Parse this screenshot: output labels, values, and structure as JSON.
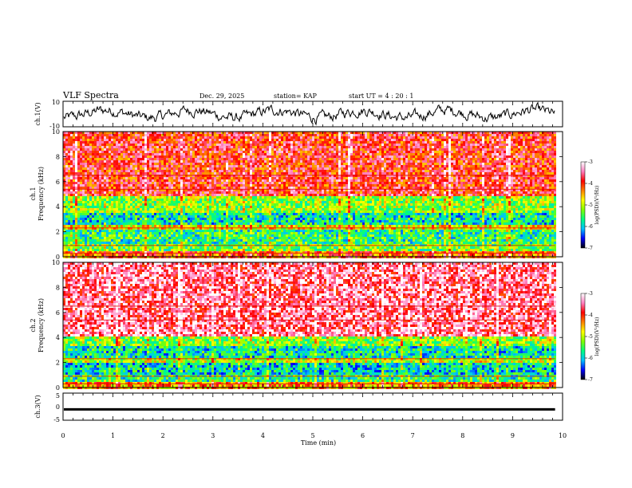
{
  "header": {
    "title": "VLF Spectra",
    "date": "Dec. 29, 2025",
    "station": "station= KAP",
    "start": "start  UT =   4 : 20 : 1"
  },
  "colors": {
    "scale": [
      "#000000",
      "#0000ff",
      "#00c0ff",
      "#00ff80",
      "#80ff00",
      "#ffff00",
      "#ff8000",
      "#ff0000",
      "#ff80c0",
      "#ffffff"
    ],
    "trace": "#000000",
    "frame": "#000000"
  },
  "chart_data": [
    {
      "type": "line",
      "panel": "ch1-waveform",
      "ylabel": "ch.1(V)",
      "ylim": [
        -10,
        10
      ],
      "ytick_labels": [
        "10",
        "-10"
      ],
      "x_range_min": [
        0,
        9.85
      ],
      "description_series": "noise-like waveform fluctuating roughly between -7 and +7 V"
    },
    {
      "type": "heatmap",
      "panel": "ch1-spectrogram",
      "ylabel": "ch.1\nFrequency (kHz)",
      "ylabel_top": "ch.1",
      "ylabel_bottom": "Frequency (kHz)",
      "ylim": [
        0,
        10
      ],
      "ytick_labels": [
        "0",
        "2",
        "4",
        "6",
        "8",
        "10"
      ],
      "colorbar": {
        "label": "log(PSD)(V²/Hz)",
        "range": [
          -7,
          -3
        ],
        "tick_labels": [
          "-3",
          "-4",
          "-5",
          "-6",
          "-7"
        ]
      },
      "bands_khz": [
        {
          "from": 0,
          "to": 0.6,
          "level": -4.2
        },
        {
          "from": 0.6,
          "to": 1.2,
          "level": -5.3
        },
        {
          "from": 1.2,
          "to": 2.2,
          "level": -5.6
        },
        {
          "from": 2.2,
          "to": 2.6,
          "level": -4.8
        },
        {
          "from": 2.6,
          "to": 3.6,
          "level": -5.8
        },
        {
          "from": 3.6,
          "to": 5.0,
          "level": -5.2
        },
        {
          "from": 5.0,
          "to": 10.0,
          "level": -3.9
        }
      ]
    },
    {
      "type": "heatmap",
      "panel": "ch2-spectrogram",
      "ylabel_top": "ch.2",
      "ylabel_bottom": "Frequency (kHz)",
      "ylim": [
        0,
        10
      ],
      "ytick_labels": [
        "0",
        "2",
        "4",
        "6",
        "8",
        "10"
      ],
      "colorbar": {
        "label": "log(PSD)(V²/Hz)",
        "range": [
          -7,
          -3
        ],
        "tick_labels": [
          "-3",
          "-4",
          "-5",
          "-6",
          "-7"
        ]
      },
      "bands_khz": [
        {
          "from": 0,
          "to": 0.6,
          "level": -4.4
        },
        {
          "from": 0.6,
          "to": 1.2,
          "level": -5.6
        },
        {
          "from": 1.2,
          "to": 2.0,
          "level": -5.9
        },
        {
          "from": 2.0,
          "to": 2.5,
          "level": -5.0
        },
        {
          "from": 2.5,
          "to": 3.4,
          "level": -5.8
        },
        {
          "from": 3.4,
          "to": 4.2,
          "level": -5.2
        },
        {
          "from": 4.2,
          "to": 10.0,
          "level": -3.5
        }
      ]
    },
    {
      "type": "line",
      "panel": "ch3-waveform",
      "ylabel": "ch.3(V)",
      "ylim": [
        -5,
        5
      ],
      "ytick_labels": [
        "5",
        "0",
        "-5"
      ],
      "value_center": -1.0,
      "value_halfwidth": 0.45
    }
  ],
  "xaxis": {
    "label": "Time  (min)",
    "xlim": [
      0,
      10
    ],
    "tick_labels": [
      "0",
      "1",
      "2",
      "3",
      "4",
      "5",
      "6",
      "7",
      "8",
      "9",
      "10"
    ],
    "data_end_min": 9.85
  }
}
